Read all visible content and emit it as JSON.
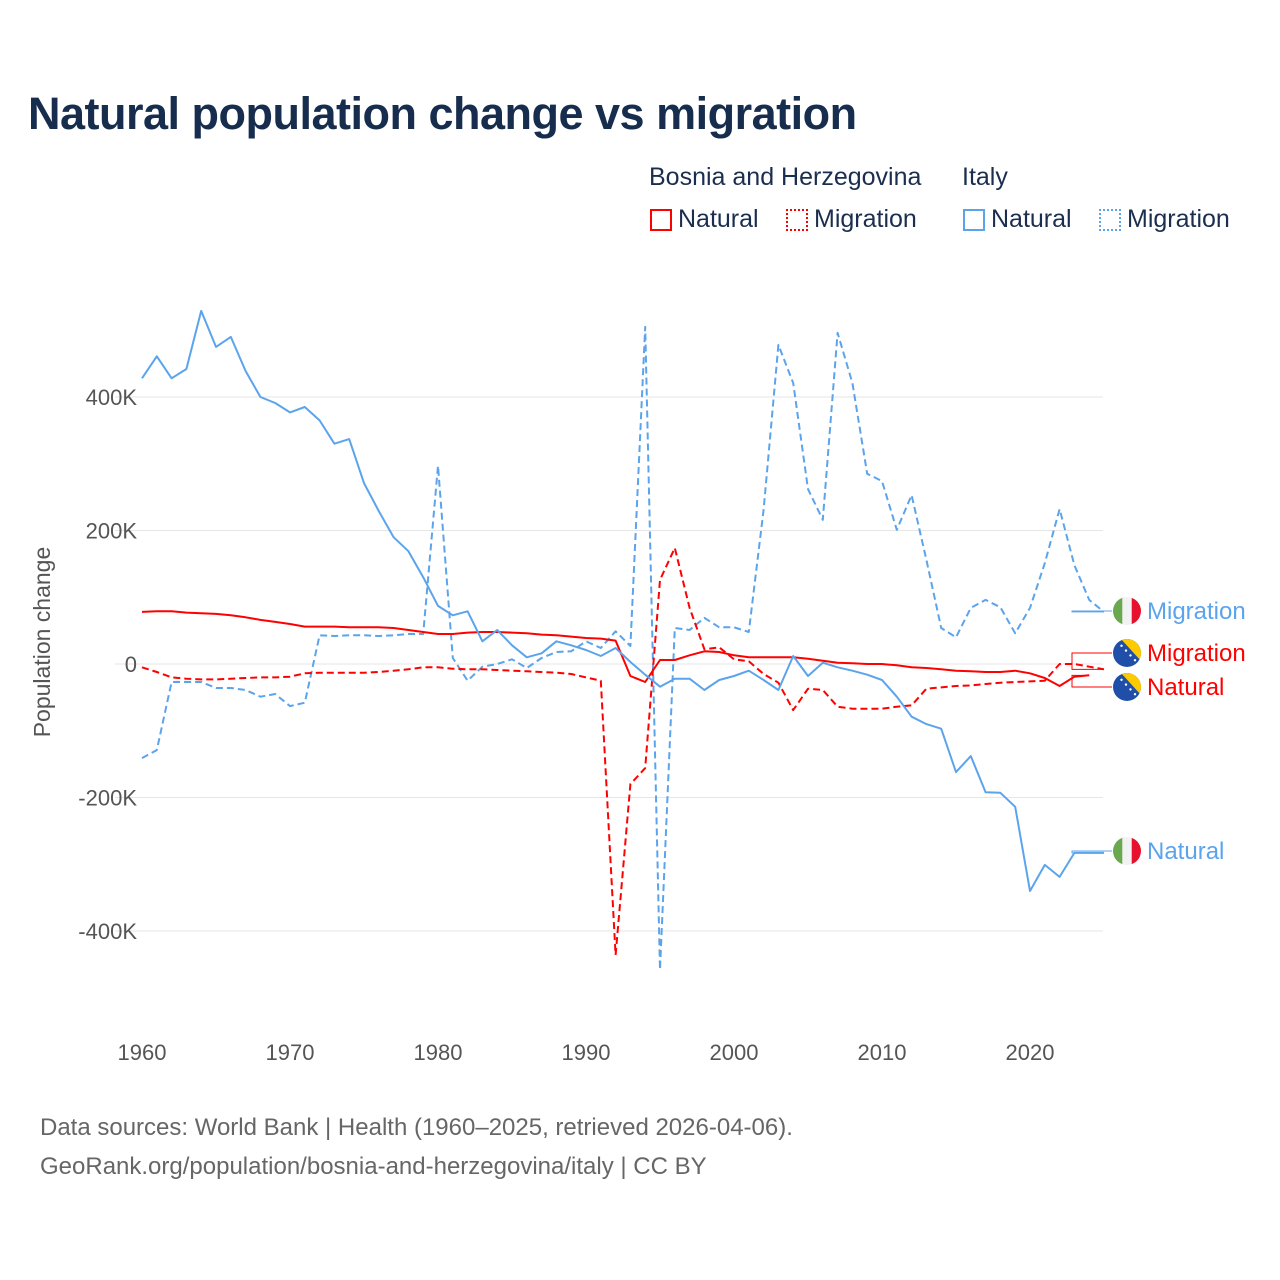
{
  "title": "Natural population change vs migration",
  "legend": {
    "groups": [
      {
        "name": "Bosnia and Herzegovina",
        "items": [
          {
            "label": "Natural",
            "style": "solid",
            "color": "#ff0000"
          },
          {
            "label": "Migration",
            "style": "dotted",
            "color": "#ff0000"
          }
        ]
      },
      {
        "name": "Italy",
        "items": [
          {
            "label": "Natural",
            "style": "solid",
            "color": "#5ba4ec"
          },
          {
            "label": "Migration",
            "style": "dotted",
            "color": "#5ba4ec"
          }
        ]
      }
    ]
  },
  "footer": {
    "line1": "Data sources: World Bank | Health (1960–2025, retrieved 2026-04-06).",
    "line2": "GeoRank.org/population/bosnia-and-herzegovina/italy | CC BY"
  },
  "chart_data": {
    "type": "line",
    "title": "Natural population change vs migration",
    "xlabel": "",
    "ylabel": "Population change",
    "xlim": [
      1960,
      2025
    ],
    "ylim": [
      -460,
      530
    ],
    "y_unit": "thousands",
    "x_ticks": [
      1960,
      1970,
      1980,
      1990,
      2000,
      2010,
      2020
    ],
    "x_tick_labels": [
      "1960",
      "1970",
      "1980",
      "1990",
      "2000",
      "2010",
      "2020"
    ],
    "y_ticks": [
      400,
      200,
      0,
      -200,
      -400
    ],
    "y_tick_labels": [
      "400K",
      "200K",
      "0",
      "-200K",
      "-400K"
    ],
    "grid": true,
    "x_start": 1960,
    "series": [
      {
        "name": "Italy Migration",
        "end_label": "Migration",
        "country": "Italy",
        "color": "#5ba4ec",
        "dash": true,
        "values": [
          -141,
          -129,
          -27,
          -27,
          -27,
          -36,
          -36,
          -39,
          -49,
          -45,
          -63,
          -58,
          43,
          42,
          43,
          43,
          42,
          43,
          45,
          45,
          297,
          9,
          -25,
          -4,
          0,
          7,
          -6,
          9,
          18,
          19,
          34,
          24,
          49,
          27,
          505,
          -458,
          54,
          51,
          69,
          55,
          55,
          48,
          231,
          478,
          421,
          262,
          216,
          496,
          421,
          285,
          274,
          201,
          253,
          156,
          54,
          40,
          84,
          96,
          85,
          46,
          84,
          151,
          232,
          148,
          96,
          78
        ]
      },
      {
        "name": "Bosnia and Herzegovina Migration",
        "end_label": "Migration",
        "country": "Bosnia and Herzegovina",
        "color": "#ff0000",
        "dash": true,
        "values": [
          -5,
          -12,
          -20,
          -22,
          -23,
          -23,
          -22,
          -21,
          -20,
          -20,
          -19,
          -14,
          -13,
          -13,
          -13,
          -13,
          -12,
          -10,
          -8,
          -5,
          -5,
          -7,
          -8,
          -8,
          -9,
          -10,
          -11,
          -12,
          -13,
          -15,
          -20,
          -25,
          -436,
          -180,
          -156,
          126,
          174,
          84,
          22,
          25,
          7,
          4,
          -15,
          -28,
          -69,
          -37,
          -39,
          -64,
          -67,
          -67,
          -67,
          -64,
          -62,
          -37,
          -35,
          -33,
          -32,
          -30,
          -28,
          -27,
          -26,
          -25,
          0,
          0,
          -4,
          -8
        ]
      },
      {
        "name": "Bosnia and Herzegovina Natural",
        "end_label": "Natural",
        "country": "Bosnia and Herzegovina",
        "color": "#ff0000",
        "dash": false,
        "values": [
          78,
          79,
          79,
          77,
          76,
          75,
          73,
          70,
          66,
          63,
          60,
          56,
          56,
          56,
          55,
          55,
          55,
          54,
          51,
          48,
          45,
          45,
          47,
          48,
          48,
          47,
          46,
          44,
          43,
          41,
          39,
          38,
          35,
          -18,
          -27,
          6,
          6,
          13,
          19,
          18,
          13,
          10,
          10,
          10,
          10,
          8,
          5,
          2,
          1,
          0,
          0,
          -2,
          -5,
          -6,
          -8,
          -10,
          -11,
          -12,
          -12,
          -10,
          -14,
          -21,
          -33,
          -19,
          -17,
          null
        ]
      },
      {
        "name": "Italy Natural",
        "end_label": "Natural",
        "country": "Italy",
        "color": "#5ba4ec",
        "dash": false,
        "values": [
          428,
          461,
          428,
          442,
          529,
          475,
          490,
          439,
          400,
          391,
          377,
          385,
          365,
          330,
          337,
          271,
          229,
          190,
          169,
          130,
          87,
          73,
          79,
          34,
          51,
          28,
          10,
          16,
          34,
          28,
          21,
          12,
          24,
          3,
          -16,
          -34,
          -22,
          -22,
          -39,
          -24,
          -18,
          -10,
          -24,
          -39,
          12,
          -18,
          2,
          -5,
          -10,
          -16,
          -24,
          -49,
          -79,
          -90,
          -97,
          -162,
          -138,
          -192,
          -193,
          -214,
          -340,
          -301,
          -319,
          -283,
          -283,
          -283
        ]
      }
    ],
    "end_label_order": [
      "Italy Migration",
      "Bosnia and Herzegovina Migration",
      "Bosnia and Herzegovina Natural",
      "Italy Natural"
    ]
  }
}
